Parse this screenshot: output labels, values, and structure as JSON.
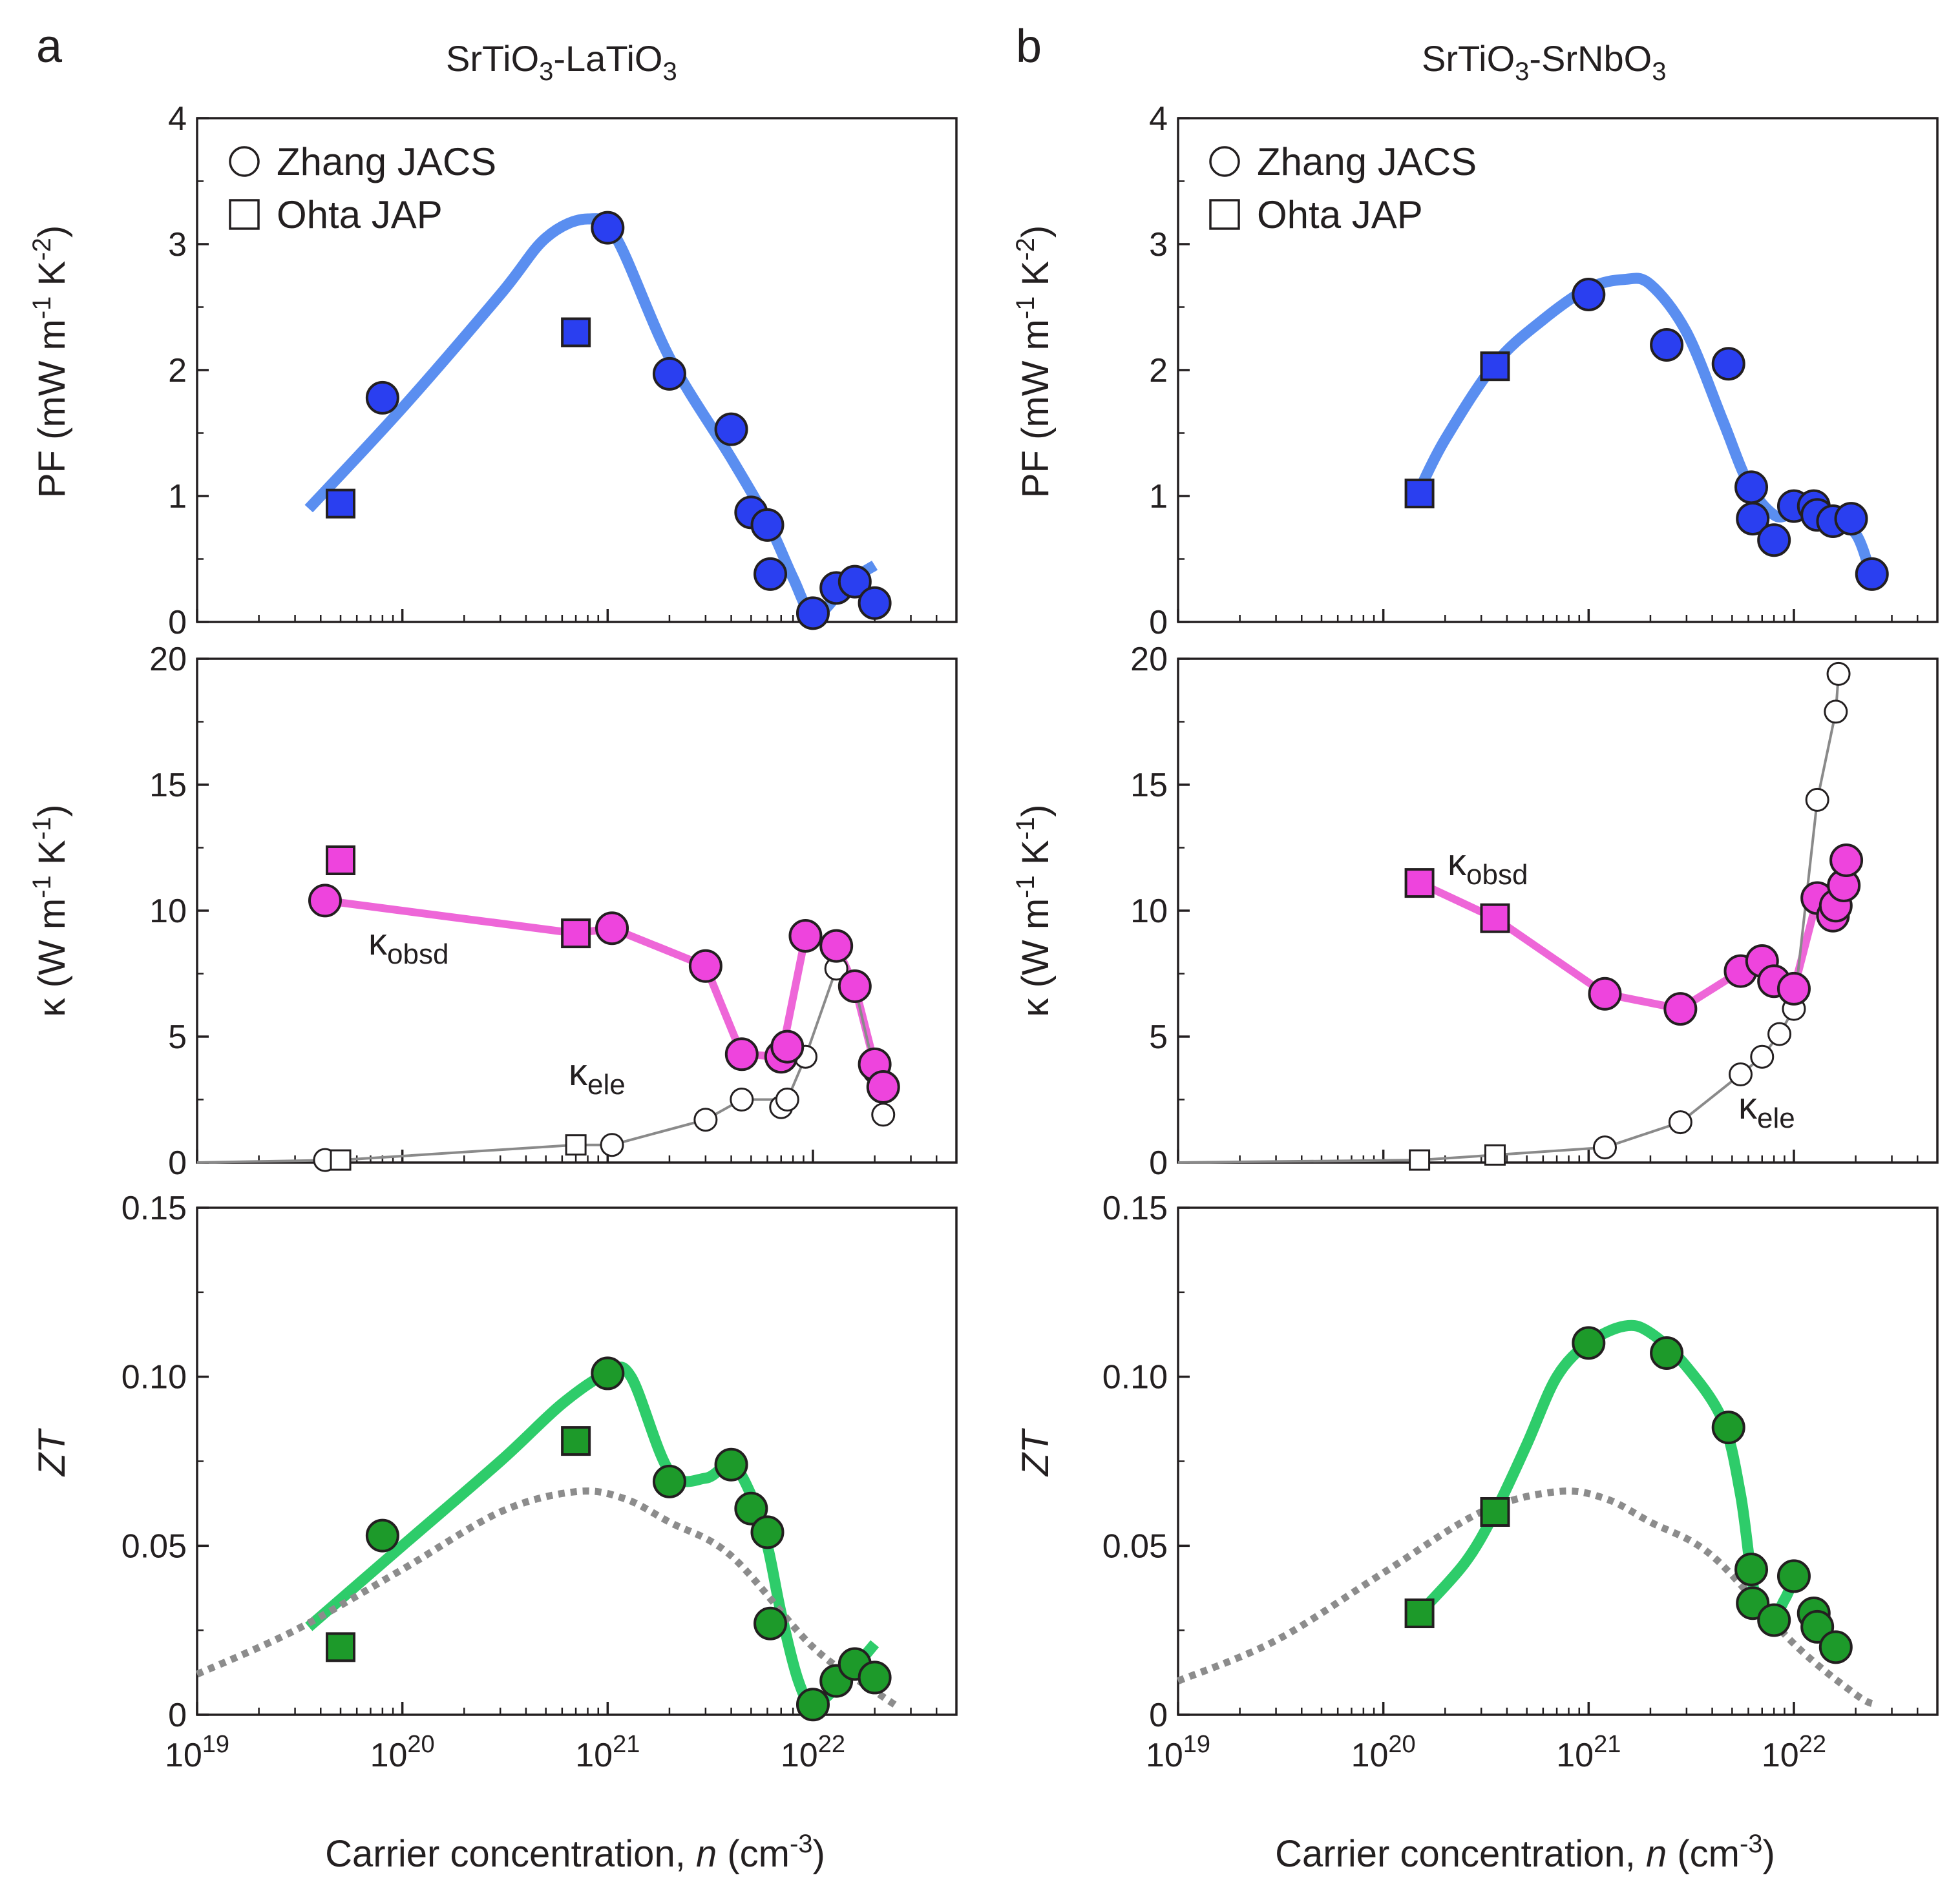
{
  "figure": {
    "panels": [
      {
        "letter": "a",
        "title_main": "SrTiO",
        "title_sub1": "3",
        "title_mid": "-LaTiO",
        "title_sub2": "3"
      },
      {
        "letter": "b",
        "title_main": "SrTiO",
        "title_sub1": "3",
        "title_mid": "-SrNbO",
        "title_sub2": "3"
      }
    ],
    "xlabel_pre": "Carrier concentration, ",
    "xlabel_var": "n",
    "xlabel_unit": " (cm",
    "xlabel_exp": "-3",
    "xlabel_close": ")",
    "x_tick_base": "10",
    "x_tick_exps": [
      "19",
      "20",
      "21",
      "22"
    ],
    "ylabel_pf": {
      "pre": "PF (mW m",
      "e1": "-1",
      "mid": " K",
      "e2": "-2",
      "post": ")"
    },
    "ylabel_kappa": {
      "pre": "κ (W m",
      "e1": "-1",
      "mid": " K",
      "e2": "-1",
      "post": ")"
    },
    "ylabel_zt": "ZT",
    "yticks_pf": [
      "0",
      "1",
      "2",
      "3",
      "4"
    ],
    "yticks_kappa": [
      "0",
      "5",
      "10",
      "15",
      "20"
    ],
    "yticks_zt": [
      "0",
      "0.05",
      "0.10",
      "0.15"
    ],
    "legend": {
      "circle_label": "Zhang JACS",
      "square_label": "Ohta JAP"
    },
    "annotations": {
      "kappa_symbol": "κ",
      "obsd_sub": "obsd",
      "ele_sub": "ele"
    }
  },
  "colors": {
    "pf_fill": "#2a3ff0",
    "pf_line": "#5a8ef0",
    "kappa_fill": "#ee44dd",
    "kappa_line": "#ee66d8",
    "zt_fill": "#1d9a2a",
    "zt_line": "#2ecc6a",
    "ele_line": "#8a8a8a",
    "dotted": "#8c8c8c",
    "outline": "#231f20"
  },
  "chart_data": [
    {
      "type": "scatter",
      "panel": "a",
      "quantity": "PF",
      "title": "SrTiO3-LaTiO3",
      "xlabel": "Carrier concentration, n (cm-3)",
      "ylabel": "PF (mW m-1 K-2)",
      "xscale": "log",
      "xlim": [
        1e+19,
        5e+22
      ],
      "ylim": [
        0,
        4
      ],
      "series": [
        {
          "name": "Zhang JACS",
          "marker": "circle",
          "x": [
            8e+19,
            1e+21,
            2e+21,
            4e+21,
            5e+21,
            6e+21,
            6.2e+21,
            1e+22,
            1.3e+22,
            1.6e+22,
            2e+22
          ],
          "y": [
            1.78,
            3.13,
            1.97,
            1.53,
            0.87,
            0.77,
            0.38,
            0.07,
            0.27,
            0.32,
            0.15
          ]
        },
        {
          "name": "Ohta JAP",
          "marker": "square",
          "x": [
            5e+19,
            7e+20
          ],
          "y": [
            0.94,
            2.3
          ]
        },
        {
          "name": "trend",
          "style": "line",
          "x": [
            3.5e+19,
            1e+20,
            3e+20,
            5e+20,
            8e+20,
            1.1e+21,
            2e+21,
            4e+21,
            6e+21,
            8e+21,
            1e+22,
            1.3e+22,
            1.6e+22,
            2e+22
          ],
          "y": [
            0.9,
            1.7,
            2.6,
            3.05,
            3.2,
            3.05,
            2.1,
            1.3,
            0.8,
            0.35,
            0.05,
            0.2,
            0.35,
            0.45
          ]
        }
      ]
    },
    {
      "type": "scatter",
      "panel": "b",
      "quantity": "PF",
      "title": "SrTiO3-SrNbO3",
      "xlabel": "Carrier concentration, n (cm-3)",
      "ylabel": "PF (mW m-1 K-2)",
      "xscale": "log",
      "xlim": [
        1e+19,
        5e+22
      ],
      "ylim": [
        0,
        4
      ],
      "series": [
        {
          "name": "Zhang JACS",
          "marker": "circle",
          "x": [
            1e+21,
            2.4e+21,
            4.8e+21,
            6.2e+21,
            6.3e+21,
            8e+21,
            1e+22,
            1.25e+22,
            1.3e+22,
            1.55e+22,
            1.9e+22,
            2.4e+22
          ],
          "y": [
            2.6,
            2.2,
            2.05,
            1.07,
            0.82,
            0.65,
            0.92,
            0.92,
            0.85,
            0.8,
            0.82,
            0.38
          ]
        },
        {
          "name": "Ohta JAP",
          "marker": "square",
          "x": [
            1.5e+20,
            3.5e+20
          ],
          "y": [
            1.02,
            2.03
          ]
        },
        {
          "name": "trend",
          "style": "line",
          "x": [
            1.5e+20,
            2e+20,
            3.5e+20,
            6e+20,
            1e+21,
            1.5e+21,
            2e+21,
            3e+21,
            4.5e+21,
            6e+21,
            8e+21,
            1e+22,
            1.5e+22,
            2e+22,
            2.4e+22
          ],
          "y": [
            1.05,
            1.45,
            2.05,
            2.4,
            2.65,
            2.72,
            2.68,
            2.3,
            1.6,
            1.1,
            0.85,
            0.85,
            0.8,
            0.7,
            0.35
          ]
        }
      ]
    },
    {
      "type": "scatter",
      "panel": "a",
      "quantity": "kappa",
      "ylabel": "κ (W m-1 K-1)",
      "xscale": "log",
      "xlim": [
        1e+19,
        5e+22
      ],
      "ylim": [
        0,
        20
      ],
      "series": [
        {
          "name": "κobsd Zhang JACS",
          "marker": "circle",
          "x": [
            4.2e+19,
            1.05e+21,
            3e+21,
            4.5e+21,
            7e+21,
            7.5e+21,
            9.2e+21,
            1.3e+22,
            1.6e+22,
            2e+22,
            2.2e+22
          ],
          "y": [
            10.4,
            9.3,
            7.8,
            4.3,
            4.2,
            4.6,
            9.0,
            8.6,
            7.0,
            3.9,
            3.0
          ]
        },
        {
          "name": "κobsd Ohta JAP",
          "marker": "square",
          "x": [
            5e+19,
            7e+20
          ],
          "y": [
            12.0,
            9.1
          ]
        },
        {
          "name": "κobsd line",
          "style": "line",
          "x": [
            4.2e+19,
            7e+20,
            1.05e+21,
            3e+21,
            4.5e+21,
            7e+21,
            9.2e+21,
            1.3e+22,
            1.6e+22,
            2e+22,
            2.2e+22
          ],
          "y": [
            10.4,
            9.1,
            9.3,
            7.8,
            4.3,
            4.2,
            9.0,
            8.6,
            7.0,
            3.9,
            3.0
          ]
        },
        {
          "name": "κele Zhang JACS",
          "marker": "circle",
          "open": true,
          "x": [
            4.2e+19,
            1.05e+21,
            3e+21,
            4.5e+21,
            7e+21,
            7.5e+21,
            9.2e+21,
            1.3e+22,
            1.6e+22,
            2e+22,
            2.2e+22
          ],
          "y": [
            0.1,
            0.7,
            1.7,
            2.5,
            2.2,
            2.5,
            4.2,
            7.7,
            7.0,
            3.6,
            1.9
          ]
        },
        {
          "name": "κele Ohta JAP",
          "marker": "square",
          "open": true,
          "x": [
            5e+19,
            7e+20
          ],
          "y": [
            0.1,
            0.7
          ]
        },
        {
          "name": "κele line",
          "style": "line",
          "x": [
            1e+19,
            5e+19,
            7e+20,
            1.05e+21,
            3e+21,
            4.5e+21,
            7e+21,
            7.5e+21,
            9.2e+21,
            1.3e+22,
            1.6e+22,
            2e+22,
            2.2e+22
          ],
          "y": [
            0,
            0.1,
            0.7,
            0.7,
            1.7,
            2.5,
            2.5,
            2.5,
            4.2,
            7.7,
            7.0,
            3.6,
            1.9
          ]
        }
      ]
    },
    {
      "type": "scatter",
      "panel": "b",
      "quantity": "kappa",
      "ylabel": "κ (W m-1 K-1)",
      "xscale": "log",
      "xlim": [
        1e+19,
        5e+22
      ],
      "ylim": [
        0,
        20
      ],
      "series": [
        {
          "name": "κobsd Zhang JACS",
          "marker": "circle",
          "x": [
            1.2e+21,
            2.8e+21,
            5.5e+21,
            7e+21,
            8e+21,
            1e+22,
            1.3e+22,
            1.55e+22,
            1.6e+22,
            1.75e+22,
            1.8e+22
          ],
          "y": [
            6.7,
            6.1,
            7.6,
            8.0,
            7.2,
            6.9,
            10.5,
            9.8,
            10.2,
            11.0,
            12.0
          ]
        },
        {
          "name": "κobsd Ohta JAP",
          "marker": "square",
          "x": [
            1.5e+20,
            3.5e+20
          ],
          "y": [
            11.1,
            9.7
          ]
        },
        {
          "name": "κobsd line",
          "style": "line",
          "x": [
            1.5e+20,
            3.5e+20,
            1.2e+21,
            2.8e+21,
            5.5e+21,
            7e+21,
            8e+21,
            1e+22,
            1.3e+22,
            1.55e+22,
            1.8e+22
          ],
          "y": [
            11.1,
            9.7,
            6.7,
            6.1,
            7.6,
            8.0,
            7.2,
            6.9,
            10.5,
            10.0,
            12.0
          ]
        },
        {
          "name": "κele Zhang JACS",
          "marker": "circle",
          "open": true,
          "x": [
            1.2e+21,
            2.8e+21,
            5.5e+21,
            7e+21,
            8.5e+21,
            1e+22,
            1.3e+22,
            1.6e+22,
            1.65e+22
          ],
          "y": [
            0.6,
            1.6,
            3.5,
            4.2,
            5.1,
            6.1,
            14.4,
            17.9,
            19.4
          ]
        },
        {
          "name": "κele Ohta JAP",
          "marker": "square",
          "open": true,
          "x": [
            1.5e+20,
            3.5e+20
          ],
          "y": [
            0.1,
            0.3
          ]
        },
        {
          "name": "κele line",
          "style": "line",
          "x": [
            1e+19,
            1.5e+20,
            3.5e+20,
            1.2e+21,
            2.8e+21,
            5.5e+21,
            7e+21,
            8.5e+21,
            1e+22,
            1.3e+22,
            1.6e+22,
            1.65e+22
          ],
          "y": [
            0,
            0.1,
            0.3,
            0.6,
            1.6,
            3.5,
            4.2,
            5.1,
            6.1,
            14.4,
            17.9,
            19.4
          ]
        }
      ]
    },
    {
      "type": "scatter",
      "panel": "a",
      "quantity": "ZT",
      "ylabel": "ZT",
      "xscale": "log",
      "xlim": [
        1e+19,
        5e+22
      ],
      "ylim": [
        0,
        0.15
      ],
      "series": [
        {
          "name": "Zhang JACS",
          "marker": "circle",
          "x": [
            8e+19,
            1e+21,
            2e+21,
            4e+21,
            5e+21,
            6e+21,
            6.2e+21,
            1e+22,
            1.3e+22,
            1.6e+22,
            2e+22
          ],
          "y": [
            0.053,
            0.101,
            0.069,
            0.074,
            0.061,
            0.054,
            0.027,
            0.003,
            0.01,
            0.015,
            0.011
          ]
        },
        {
          "name": "Ohta JAP",
          "marker": "square",
          "x": [
            5e+19,
            7e+20
          ],
          "y": [
            0.02,
            0.081
          ]
        },
        {
          "name": "trend",
          "style": "line",
          "x": [
            3.5e+19,
            1e+20,
            3e+20,
            6e+20,
            1e+21,
            1.3e+21,
            2e+21,
            3e+21,
            4e+21,
            5e+21,
            6e+21,
            7e+21,
            8.5e+21,
            1e+22,
            1.3e+22,
            1.6e+22,
            2e+22
          ],
          "y": [
            0.026,
            0.05,
            0.075,
            0.092,
            0.101,
            0.1,
            0.072,
            0.07,
            0.074,
            0.065,
            0.05,
            0.03,
            0.01,
            0.003,
            0.008,
            0.014,
            0.021
          ]
        },
        {
          "name": "reference",
          "style": "dotted",
          "x": [
            1e+19,
            3e+19,
            1e+20,
            3e+20,
            7e+20,
            1.2e+21,
            2e+21,
            4e+21,
            1e+22,
            2e+22,
            2.5e+22
          ],
          "y": [
            0.012,
            0.025,
            0.043,
            0.06,
            0.066,
            0.064,
            0.057,
            0.047,
            0.02,
            0.007,
            0.003
          ]
        }
      ]
    },
    {
      "type": "scatter",
      "panel": "b",
      "quantity": "ZT",
      "ylabel": "ZT",
      "xscale": "log",
      "xlim": [
        1e+19,
        5e+22
      ],
      "ylim": [
        0,
        0.15
      ],
      "series": [
        {
          "name": "Zhang JACS",
          "marker": "circle",
          "x": [
            1e+21,
            2.4e+21,
            4.8e+21,
            6.2e+21,
            6.3e+21,
            8e+21,
            1e+22,
            1.25e+22,
            1.3e+22,
            1.6e+22
          ],
          "y": [
            0.11,
            0.107,
            0.085,
            0.043,
            0.033,
            0.028,
            0.041,
            0.03,
            0.026,
            0.02
          ]
        },
        {
          "name": "Ohta JAP",
          "marker": "square",
          "x": [
            1.5e+20,
            3.5e+20
          ],
          "y": [
            0.03,
            0.06
          ]
        },
        {
          "name": "trend",
          "style": "line",
          "x": [
            1.5e+20,
            2.5e+20,
            3.5e+20,
            5e+20,
            7e+20,
            1e+21,
            1.5e+21,
            2e+21,
            3e+21,
            4.5e+21,
            5.5e+21,
            6.5e+21,
            8e+21,
            9e+21,
            1e+22
          ],
          "y": [
            0.03,
            0.045,
            0.06,
            0.08,
            0.1,
            0.11,
            0.115,
            0.113,
            0.103,
            0.087,
            0.065,
            0.035,
            0.03,
            0.034,
            0.04
          ]
        },
        {
          "name": "reference",
          "style": "dotted",
          "x": [
            1e+19,
            3e+19,
            1e+20,
            3e+20,
            7e+20,
            1.2e+21,
            2e+21,
            4e+21,
            1e+22,
            2e+22,
            2.5e+22
          ],
          "y": [
            0.01,
            0.022,
            0.042,
            0.06,
            0.066,
            0.064,
            0.057,
            0.047,
            0.021,
            0.006,
            0.003
          ]
        }
      ]
    }
  ]
}
